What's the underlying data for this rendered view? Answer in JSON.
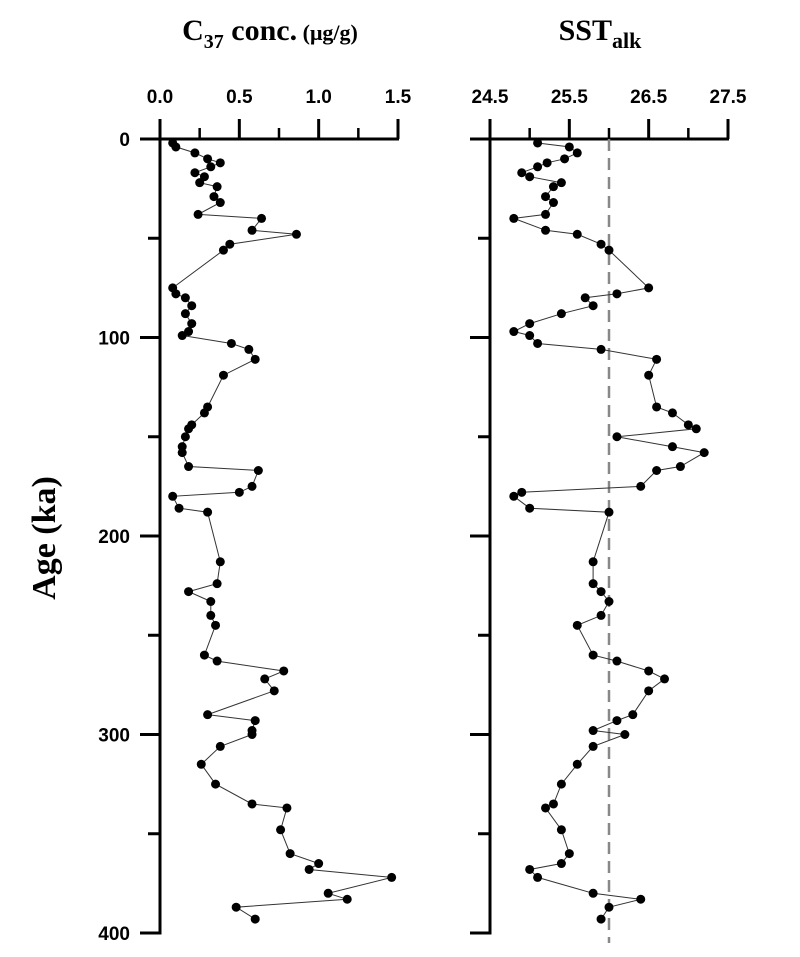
{
  "chart_data": [
    {
      "type": "line",
      "title": "C37 conc. (µg/g)",
      "title_parts": {
        "main": "C",
        "sub": "37",
        "rest": " conc.",
        "unit": " (μg/g)"
      },
      "xlabel": "C37 conc. (µg/g)",
      "ylabel": "Age (ka)",
      "xlim": [
        0,
        1.5
      ],
      "ylim": [
        0,
        400
      ],
      "y_inverted": true,
      "x_ticks": [
        "0.0",
        "0.5",
        "1.0",
        "1.5"
      ],
      "x_tick_values": [
        0,
        0.5,
        1.0,
        1.5
      ],
      "y_ticks": [
        "0",
        "100",
        "200",
        "300",
        "400"
      ],
      "y_tick_values": [
        0,
        100,
        200,
        300,
        400
      ],
      "series": [
        {
          "x": [
            0.08,
            0.1,
            0.22,
            0.3,
            0.38,
            0.32,
            0.22,
            0.28,
            0.25,
            0.36,
            0.34,
            0.38,
            0.24,
            0.64,
            0.58,
            0.86,
            0.44,
            0.4,
            0.08,
            0.1,
            0.16,
            0.2,
            0.16,
            0.2,
            0.18,
            0.14,
            0.45,
            0.56,
            0.6,
            0.4,
            0.3,
            0.28,
            0.2,
            0.18,
            0.16,
            0.14,
            0.14,
            0.18,
            0.62,
            0.58,
            0.5,
            0.08,
            0.12,
            0.3,
            0.38,
            0.36,
            0.18,
            0.32,
            0.32,
            0.35,
            0.28,
            0.36,
            0.78,
            0.66,
            0.72,
            0.3,
            0.6,
            0.58,
            0.58,
            0.38,
            0.26,
            0.35,
            0.58,
            0.8,
            0.76,
            0.82,
            1.0,
            0.94,
            1.46,
            1.06,
            1.18,
            0.48,
            0.6
          ],
          "y": [
            2,
            4,
            7,
            10,
            12,
            14,
            17,
            19,
            22,
            24,
            29,
            32,
            38,
            40,
            46,
            48,
            53,
            56,
            75,
            78,
            80,
            84,
            88,
            93,
            97,
            99,
            103,
            106,
            111,
            119,
            135,
            138,
            144,
            146,
            150,
            155,
            158,
            165,
            167,
            175,
            178,
            180,
            186,
            188,
            213,
            224,
            228,
            233,
            240,
            245,
            260,
            263,
            268,
            272,
            278,
            290,
            293,
            298,
            300,
            306,
            315,
            325,
            335,
            337,
            348,
            360,
            365,
            368,
            372,
            380,
            383,
            387,
            393
          ]
        }
      ]
    },
    {
      "type": "line",
      "title": "SSTalk",
      "title_parts": {
        "main": "SST",
        "sub": "alk"
      },
      "xlabel": "SSTalk",
      "ylabel": "Age (ka)",
      "xlim": [
        24.5,
        27.5
      ],
      "ylim": [
        0,
        400
      ],
      "y_inverted": true,
      "x_ticks": [
        "24.5",
        "25.5",
        "26.5",
        "27.5"
      ],
      "x_tick_values": [
        24.5,
        25.5,
        26.5,
        27.5
      ],
      "reference_line_x": 26.0,
      "series": [
        {
          "x": [
            25.1,
            25.5,
            25.6,
            25.44,
            25.22,
            25.1,
            24.9,
            25.0,
            25.4,
            25.3,
            25.2,
            25.3,
            25.2,
            24.8,
            25.2,
            25.6,
            25.9,
            26.0,
            26.5,
            26.1,
            25.7,
            25.8,
            25.4,
            25.0,
            24.8,
            25.0,
            25.1,
            25.9,
            26.6,
            26.5,
            26.6,
            26.8,
            27.0,
            27.1,
            26.1,
            26.8,
            27.2,
            26.9,
            26.6,
            26.4,
            24.9,
            24.8,
            25.0,
            26.0,
            25.8,
            25.8,
            25.9,
            26.0,
            25.9,
            25.6,
            25.8,
            26.1,
            26.5,
            26.7,
            26.5,
            26.3,
            26.1,
            25.8,
            26.2,
            25.8,
            25.6,
            25.4,
            25.3,
            25.2,
            25.4,
            25.5,
            25.4,
            25.0,
            25.1,
            25.8,
            26.4,
            26.0,
            25.9
          ],
          "y": [
            2,
            4,
            7,
            10,
            12,
            14,
            17,
            19,
            22,
            24,
            29,
            32,
            38,
            40,
            46,
            48,
            53,
            56,
            75,
            78,
            80,
            84,
            88,
            93,
            97,
            99,
            103,
            106,
            111,
            119,
            135,
            138,
            144,
            146,
            150,
            155,
            158,
            165,
            167,
            175,
            178,
            180,
            186,
            188,
            213,
            224,
            228,
            233,
            240,
            245,
            260,
            263,
            268,
            272,
            278,
            290,
            293,
            298,
            300,
            306,
            315,
            325,
            335,
            337,
            348,
            360,
            365,
            368,
            372,
            380,
            383,
            387,
            393
          ]
        }
      ]
    }
  ],
  "axis": {
    "ylabel": "Age (ka)"
  },
  "colors": {
    "line": "#333333",
    "marker": "#000000",
    "reference": "#888888"
  }
}
